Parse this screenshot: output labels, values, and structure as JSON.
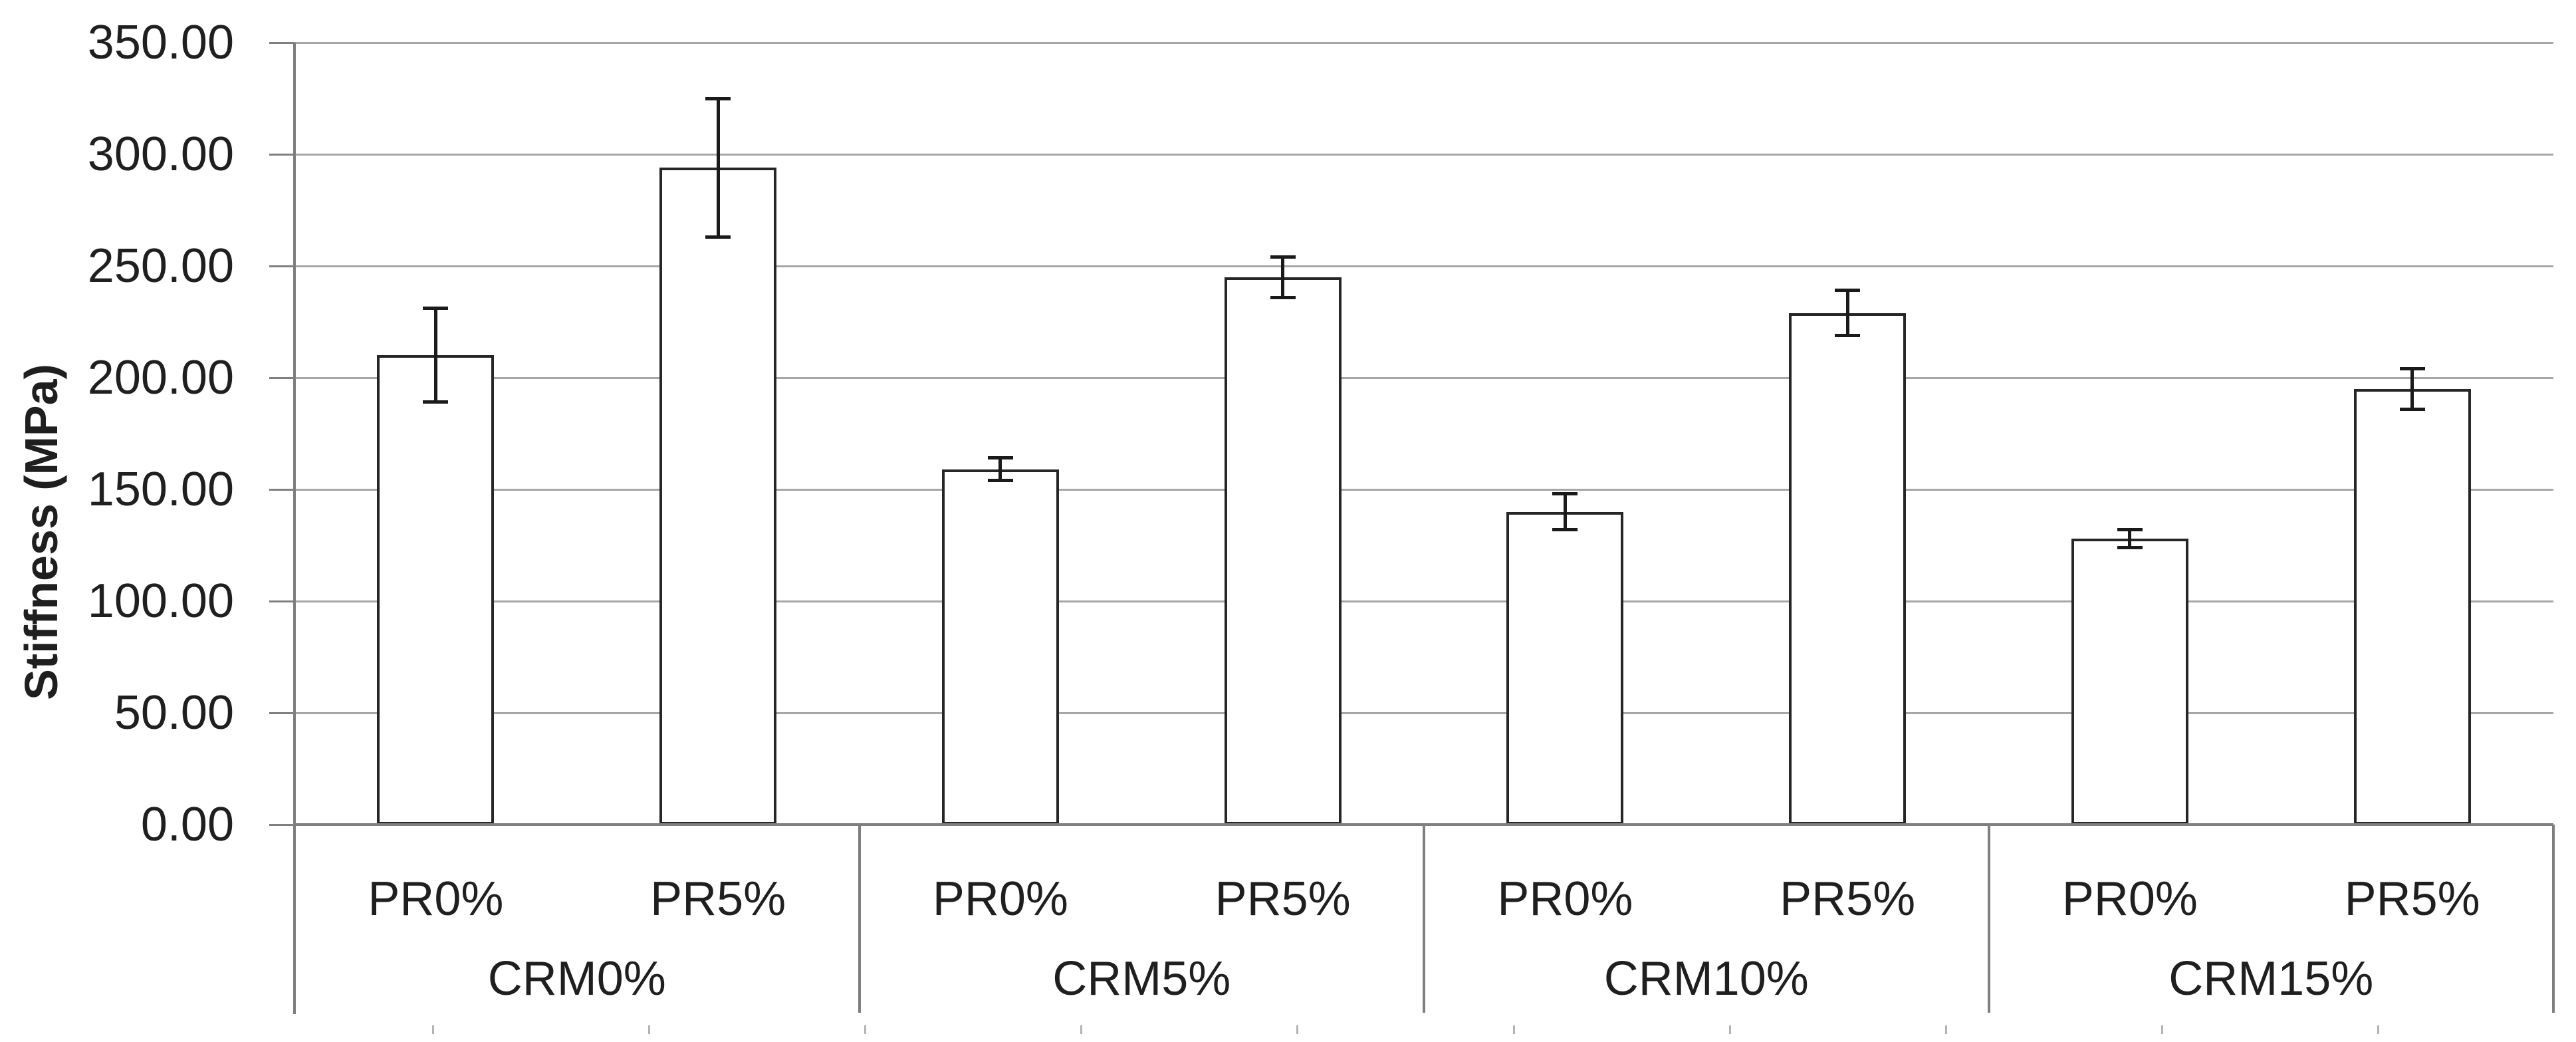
{
  "chart_data": {
    "type": "bar",
    "title": "",
    "ylabel": "Stiffness (MPa)",
    "xlabel": "",
    "legend": false,
    "grid": true,
    "ylim": [
      0,
      350
    ],
    "y_tick_step": 50,
    "y_tick_labels": [
      "350.00",
      "300.00",
      "250.00",
      "200.00",
      "150.00",
      "100.00",
      "50.00",
      "0.00"
    ],
    "categories": [
      "CRM0%",
      "CRM5%",
      "CRM10%",
      "CRM15%"
    ],
    "sub_categories": [
      "PR0%",
      "PR5%"
    ],
    "groups": [
      {
        "label": "CRM0%",
        "bars": [
          {
            "label": "PR0%",
            "value": 210,
            "error": 21
          },
          {
            "label": "PR5%",
            "value": 294,
            "error": 31
          }
        ]
      },
      {
        "label": "CRM5%",
        "bars": [
          {
            "label": "PR0%",
            "value": 159,
            "error": 5
          },
          {
            "label": "PR5%",
            "value": 245,
            "error": 9
          }
        ]
      },
      {
        "label": "CRM10%",
        "bars": [
          {
            "label": "PR0%",
            "value": 140,
            "error": 8
          },
          {
            "label": "PR5%",
            "value": 229,
            "error": 10
          }
        ]
      },
      {
        "label": "CRM15%",
        "bars": [
          {
            "label": "PR0%",
            "value": 128,
            "error": 4
          },
          {
            "label": "PR5%",
            "value": 195,
            "error": 9
          }
        ]
      }
    ],
    "colors": {
      "bar_fill": "#ffffff",
      "bar_border": "#262626",
      "error_bar": "#1a1a1a",
      "gridline": "#a6a6a6",
      "axis": "#7f7f7f",
      "text": "#1f1f1f"
    }
  }
}
